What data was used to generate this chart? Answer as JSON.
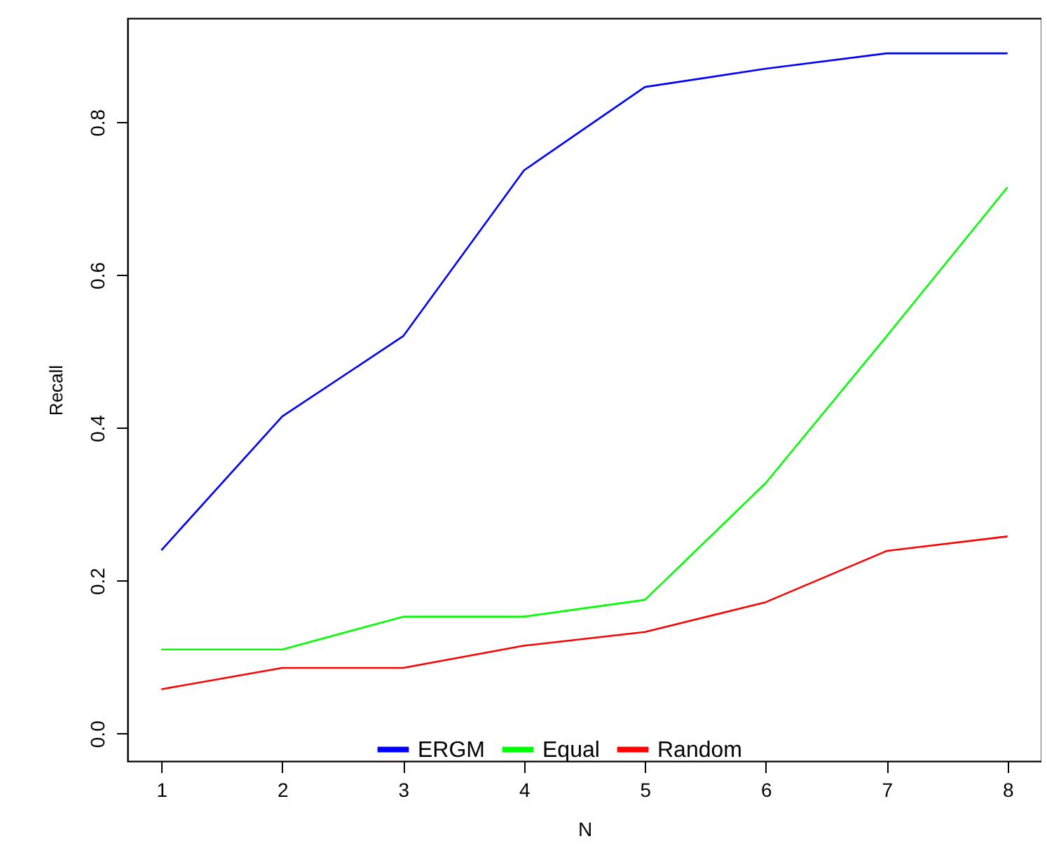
{
  "chart_data": {
    "type": "line",
    "xlabel": "N",
    "ylabel": "Recall",
    "x": [
      1,
      2,
      3,
      4,
      5,
      6,
      7,
      8
    ],
    "series": [
      {
        "name": "ERGM",
        "color": "#0000ff",
        "values": [
          0.24,
          0.415,
          0.52,
          0.737,
          0.846,
          0.87,
          0.89,
          0.89
        ]
      },
      {
        "name": "Equal",
        "color": "#00ff00",
        "values": [
          0.11,
          0.11,
          0.153,
          0.153,
          0.175,
          0.328,
          0.52,
          0.715
        ]
      },
      {
        "name": "Random",
        "color": "#ff0000",
        "values": [
          0.058,
          0.086,
          0.086,
          0.115,
          0.133,
          0.172,
          0.239,
          0.258
        ]
      }
    ],
    "xlim": [
      0.72,
      8.28
    ],
    "xticks": [
      1,
      2,
      3,
      4,
      5,
      6,
      7,
      8
    ],
    "ylim": [
      -0.036,
      0.936
    ],
    "yticks": [
      {
        "value": 0,
        "label": "0.0"
      },
      0.2,
      0.4,
      0.6,
      0.8
    ],
    "grid": false,
    "legend": "bottom",
    "marker": "none",
    "line_style": "solid"
  }
}
